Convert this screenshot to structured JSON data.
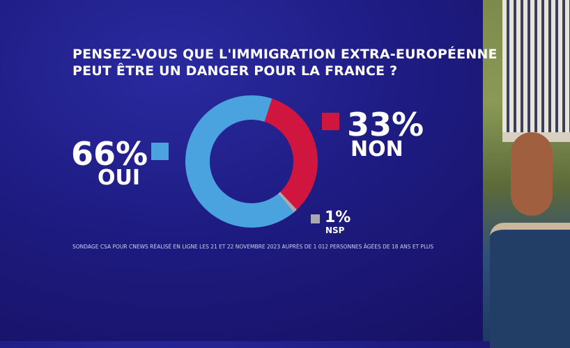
{
  "title_lines": [
    "PENSEZ-VOUS QUE L'IMMIGRATION EXTRA-EUROPÉENNE",
    "PEUT ÊTRE UN DANGER POUR LA FRANCE ?"
  ],
  "source": "SONDAGE CSA POUR CNEWS RÉALISÉ EN LIGNE LES 21 ET 22 NOVEMBRE 2023 AUPRÈS DE 1 012 PERSONNES ÂGÉES DE 18 ANS ET PLUS",
  "chart_data": {
    "type": "pie",
    "variant": "donut",
    "title": "PENSEZ-VOUS QUE L'IMMIGRATION EXTRA-EUROPÉENNE PEUT ÊTRE UN DANGER POUR LA FRANCE ?",
    "slices": [
      {
        "label": "NON",
        "value": 33,
        "display": "33%",
        "color": "#d0153f"
      },
      {
        "label": "NSP",
        "value": 1,
        "display": "1%",
        "color": "#a9a9b5"
      },
      {
        "label": "OUI",
        "value": 66,
        "display": "66%",
        "color": "#4aa3df"
      }
    ]
  }
}
